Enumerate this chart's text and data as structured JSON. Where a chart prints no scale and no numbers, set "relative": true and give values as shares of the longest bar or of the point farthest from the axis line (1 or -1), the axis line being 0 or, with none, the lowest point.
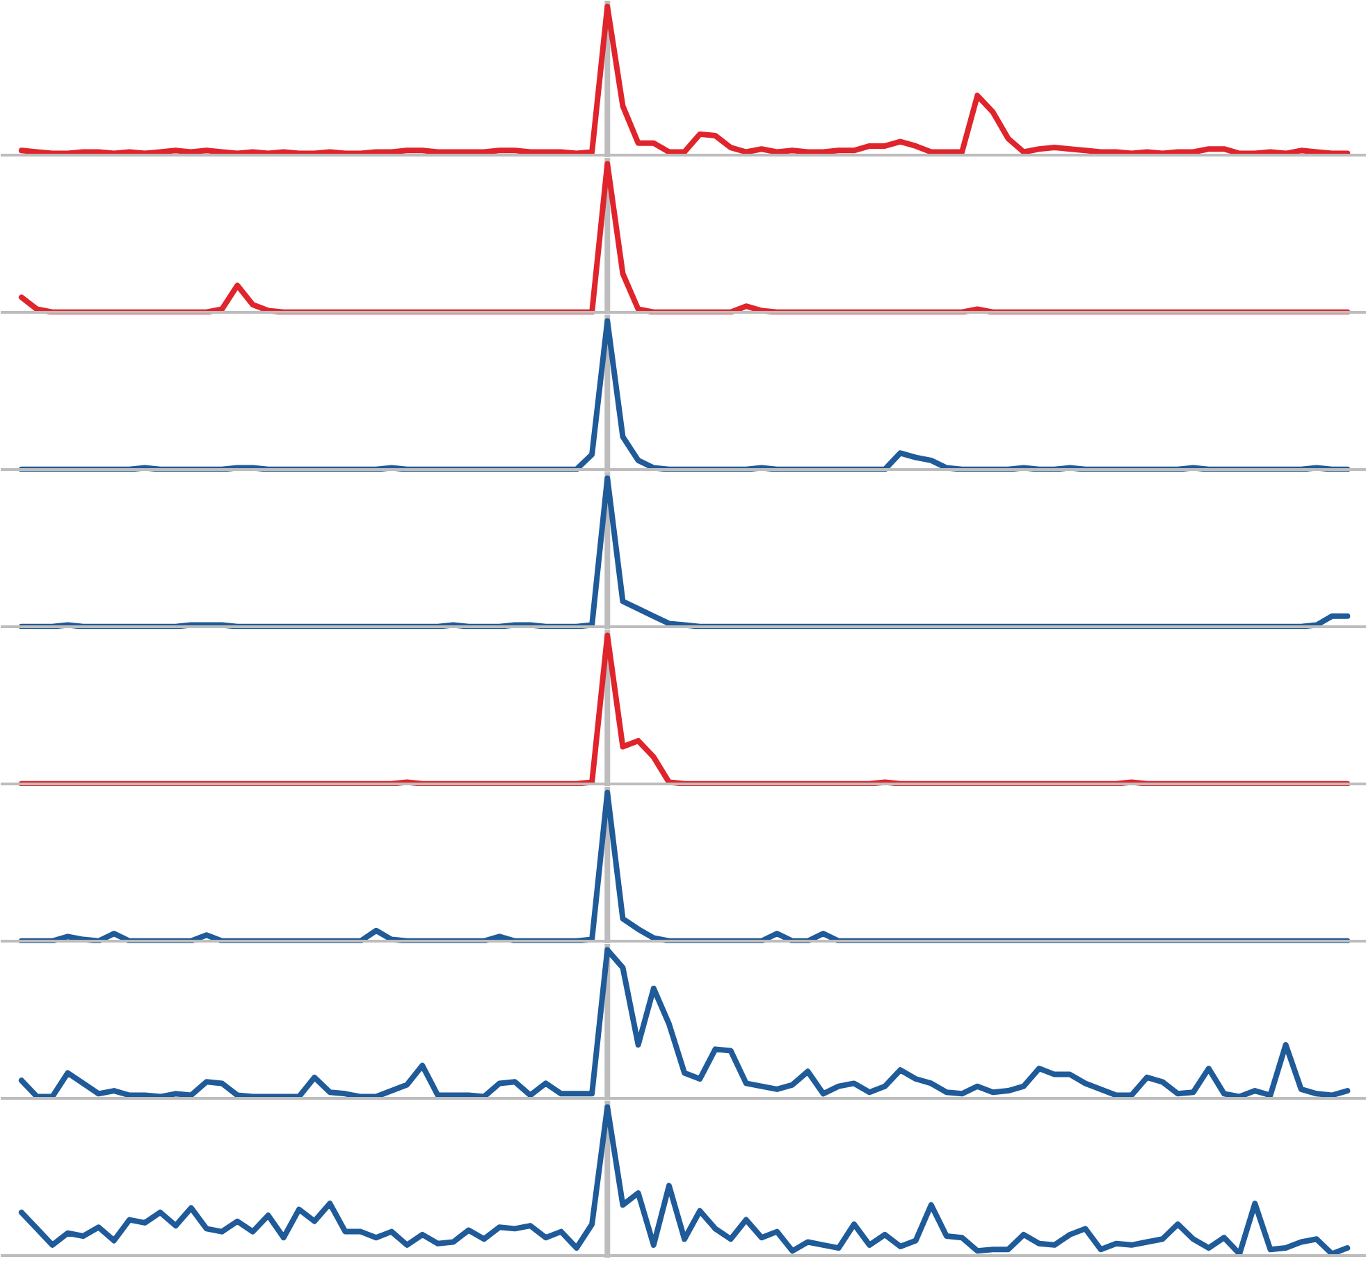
{
  "chart_data": [
    {
      "type": "line",
      "relative": true,
      "grid": false,
      "categories": [
        null,
        null,
        null,
        null,
        null,
        null,
        null,
        null,
        null,
        null,
        null,
        null,
        null,
        null,
        null,
        null,
        null,
        null,
        null,
        null,
        null,
        null,
        null,
        null,
        null,
        null,
        null,
        null,
        null,
        null,
        null,
        null,
        null,
        null,
        null,
        null,
        null,
        null,
        null,
        null,
        null,
        null,
        null,
        null,
        null,
        null,
        null,
        null,
        null,
        null,
        null,
        null,
        null,
        null,
        null,
        null,
        null,
        null,
        null,
        null,
        null,
        null,
        null,
        null,
        null,
        null,
        null,
        null,
        null,
        null,
        null,
        null,
        null,
        null,
        null,
        null,
        null,
        null,
        null,
        null,
        null,
        null,
        null,
        null,
        null,
        null,
        null
      ],
      "series": [
        {
          "color": "#e0242b",
          "values": [
            0.03,
            0.02,
            0.01,
            0.01,
            0.02,
            0.02,
            0.01,
            0.02,
            0.01,
            0.02,
            0.03,
            0.02,
            0.03,
            0.02,
            0.01,
            0.02,
            0.01,
            0.02,
            0.01,
            0.01,
            0.02,
            0.01,
            0.01,
            0.02,
            0.02,
            0.03,
            0.03,
            0.02,
            0.02,
            0.02,
            0.02,
            0.03,
            0.03,
            0.02,
            0.02,
            0.02,
            0.01,
            0.02,
            1,
            0.33,
            0.08,
            0.08,
            0.02,
            0.02,
            0.14,
            0.13,
            0.05,
            0.02,
            0.04,
            0.02,
            0.03,
            0.02,
            0.02,
            0.03,
            0.03,
            0.06,
            0.06,
            0.09,
            0.06,
            0.02,
            0.02,
            0.02,
            0.4,
            0.29,
            0.11,
            0.02,
            0.04,
            0.05,
            0.04,
            0.03,
            0.02,
            0.02,
            0.01,
            0.02,
            0.01,
            0.02,
            0.02,
            0.04,
            0.04,
            0.01,
            0.01,
            0.02,
            0.01,
            0.03,
            0.02,
            0.01,
            0.01
          ]
        }
      ]
    },
    {
      "type": "line",
      "relative": true,
      "grid": false,
      "categories": [
        null,
        null,
        null,
        null,
        null,
        null,
        null,
        null,
        null,
        null,
        null,
        null,
        null,
        null,
        null,
        null,
        null,
        null,
        null,
        null,
        null,
        null,
        null,
        null,
        null,
        null,
        null,
        null,
        null,
        null,
        null,
        null,
        null,
        null,
        null,
        null,
        null,
        null,
        null,
        null,
        null,
        null,
        null,
        null,
        null,
        null,
        null,
        null,
        null,
        null,
        null,
        null,
        null,
        null,
        null,
        null,
        null,
        null,
        null,
        null,
        null,
        null,
        null,
        null,
        null,
        null,
        null,
        null,
        null,
        null,
        null,
        null,
        null,
        null,
        null,
        null,
        null,
        null,
        null,
        null,
        null,
        null,
        null,
        null,
        null,
        null,
        null
      ],
      "series": [
        {
          "color": "#e0242b",
          "values": [
            0.1,
            0.02,
            0,
            0,
            0,
            0,
            0,
            0,
            0,
            0,
            0,
            0,
            0,
            0.02,
            0.18,
            0.05,
            0.01,
            0,
            0,
            0,
            0,
            0,
            0,
            0,
            0,
            0,
            0,
            0,
            0,
            0,
            0,
            0,
            0,
            0,
            0,
            0,
            0,
            0,
            1,
            0.26,
            0.02,
            0,
            0,
            0,
            0,
            0,
            0,
            0.04,
            0.01,
            0,
            0,
            0,
            0,
            0,
            0,
            0,
            0,
            0,
            0,
            0,
            0,
            0,
            0.02,
            0,
            0,
            0,
            0,
            0,
            0,
            0,
            0,
            0,
            0,
            0,
            0,
            0,
            0,
            0,
            0,
            0,
            0,
            0,
            0,
            0,
            0,
            0,
            0
          ]
        }
      ]
    },
    {
      "type": "line",
      "relative": true,
      "grid": false,
      "categories": [
        null,
        null,
        null,
        null,
        null,
        null,
        null,
        null,
        null,
        null,
        null,
        null,
        null,
        null,
        null,
        null,
        null,
        null,
        null,
        null,
        null,
        null,
        null,
        null,
        null,
        null,
        null,
        null,
        null,
        null,
        null,
        null,
        null,
        null,
        null,
        null,
        null,
        null,
        null,
        null,
        null,
        null,
        null,
        null,
        null,
        null,
        null,
        null,
        null,
        null,
        null,
        null,
        null,
        null,
        null,
        null,
        null,
        null,
        null,
        null,
        null,
        null,
        null,
        null,
        null,
        null,
        null,
        null,
        null,
        null,
        null,
        null,
        null,
        null,
        null,
        null,
        null,
        null,
        null,
        null,
        null,
        null,
        null,
        null,
        null,
        null,
        null
      ],
      "series": [
        {
          "color": "#1f5a99",
          "values": [
            0,
            0,
            0,
            0,
            0,
            0,
            0,
            0,
            0.01,
            0,
            0,
            0,
            0,
            0,
            0.01,
            0.01,
            0,
            0,
            0,
            0,
            0,
            0,
            0,
            0,
            0.01,
            0,
            0,
            0,
            0,
            0,
            0,
            0,
            0,
            0,
            0,
            0,
            0,
            0.1,
            1,
            0.22,
            0.06,
            0.01,
            0,
            0,
            0,
            0,
            0,
            0,
            0.01,
            0,
            0,
            0,
            0,
            0,
            0,
            0,
            0,
            0.11,
            0.08,
            0.06,
            0.01,
            0,
            0,
            0,
            0,
            0.01,
            0,
            0,
            0.01,
            0,
            0,
            0,
            0,
            0,
            0,
            0,
            0.01,
            0,
            0,
            0,
            0,
            0,
            0,
            0,
            0.01,
            0,
            0
          ]
        }
      ]
    },
    {
      "type": "line",
      "relative": true,
      "grid": false,
      "categories": [
        null,
        null,
        null,
        null,
        null,
        null,
        null,
        null,
        null,
        null,
        null,
        null,
        null,
        null,
        null,
        null,
        null,
        null,
        null,
        null,
        null,
        null,
        null,
        null,
        null,
        null,
        null,
        null,
        null,
        null,
        null,
        null,
        null,
        null,
        null,
        null,
        null,
        null,
        null,
        null,
        null,
        null,
        null,
        null,
        null,
        null,
        null,
        null,
        null,
        null,
        null,
        null,
        null,
        null,
        null,
        null,
        null,
        null,
        null,
        null,
        null,
        null,
        null,
        null,
        null,
        null,
        null,
        null,
        null,
        null,
        null,
        null,
        null,
        null,
        null,
        null,
        null,
        null,
        null,
        null,
        null,
        null,
        null,
        null,
        null,
        null,
        null
      ],
      "series": [
        {
          "color": "#1f5a99",
          "values": [
            0,
            0,
            0,
            0.01,
            0,
            0,
            0,
            0,
            0,
            0,
            0,
            0.01,
            0.01,
            0.01,
            0,
            0,
            0,
            0,
            0,
            0,
            0,
            0,
            0,
            0,
            0,
            0,
            0,
            0,
            0.01,
            0,
            0,
            0,
            0.01,
            0.01,
            0,
            0,
            0,
            0.01,
            1,
            0.17,
            0.12,
            0.07,
            0.02,
            0.01,
            0,
            0,
            0,
            0,
            0,
            0,
            0,
            0,
            0,
            0,
            0,
            0,
            0,
            0,
            0,
            0,
            0,
            0,
            0,
            0,
            0,
            0,
            0,
            0,
            0,
            0,
            0,
            0,
            0,
            0,
            0,
            0,
            0,
            0,
            0,
            0,
            0,
            0,
            0,
            0,
            0.01,
            0.07,
            0.07
          ]
        }
      ]
    },
    {
      "type": "line",
      "relative": true,
      "grid": false,
      "categories": [
        null,
        null,
        null,
        null,
        null,
        null,
        null,
        null,
        null,
        null,
        null,
        null,
        null,
        null,
        null,
        null,
        null,
        null,
        null,
        null,
        null,
        null,
        null,
        null,
        null,
        null,
        null,
        null,
        null,
        null,
        null,
        null,
        null,
        null,
        null,
        null,
        null,
        null,
        null,
        null,
        null,
        null,
        null,
        null,
        null,
        null,
        null,
        null,
        null,
        null,
        null,
        null,
        null,
        null,
        null,
        null,
        null,
        null,
        null,
        null,
        null,
        null,
        null,
        null,
        null,
        null,
        null,
        null,
        null,
        null,
        null,
        null,
        null,
        null,
        null,
        null,
        null,
        null,
        null,
        null,
        null,
        null,
        null,
        null,
        null,
        null,
        null
      ],
      "series": [
        {
          "color": "#e0242b",
          "values": [
            0,
            0,
            0,
            0,
            0,
            0,
            0,
            0,
            0,
            0,
            0,
            0,
            0,
            0,
            0,
            0,
            0,
            0,
            0,
            0,
            0,
            0,
            0,
            0,
            0,
            0.01,
            0,
            0,
            0,
            0,
            0,
            0,
            0,
            0,
            0,
            0,
            0,
            0.01,
            1,
            0.25,
            0.29,
            0.18,
            0.01,
            0,
            0,
            0,
            0,
            0,
            0,
            0,
            0,
            0,
            0,
            0,
            0,
            0,
            0.01,
            0,
            0,
            0,
            0,
            0,
            0,
            0,
            0,
            0,
            0,
            0,
            0,
            0,
            0,
            0,
            0.01,
            0,
            0,
            0,
            0,
            0,
            0,
            0,
            0,
            0,
            0,
            0,
            0,
            0,
            0
          ]
        }
      ]
    },
    {
      "type": "line",
      "relative": true,
      "grid": false,
      "categories": [
        null,
        null,
        null,
        null,
        null,
        null,
        null,
        null,
        null,
        null,
        null,
        null,
        null,
        null,
        null,
        null,
        null,
        null,
        null,
        null,
        null,
        null,
        null,
        null,
        null,
        null,
        null,
        null,
        null,
        null,
        null,
        null,
        null,
        null,
        null,
        null,
        null,
        null,
        null,
        null,
        null,
        null,
        null,
        null,
        null,
        null,
        null,
        null,
        null,
        null,
        null,
        null,
        null,
        null,
        null,
        null,
        null,
        null,
        null,
        null,
        null,
        null,
        null,
        null,
        null,
        null,
        null,
        null,
        null,
        null,
        null,
        null,
        null,
        null,
        null,
        null,
        null,
        null,
        null,
        null,
        null,
        null,
        null,
        null,
        null,
        null,
        null
      ],
      "series": [
        {
          "color": "#1f5a99",
          "values": [
            0,
            0,
            0,
            0.03,
            0.01,
            0,
            0.05,
            0,
            0,
            0,
            0,
            0,
            0.04,
            0,
            0,
            0,
            0,
            0,
            0,
            0,
            0,
            0,
            0,
            0.07,
            0.01,
            0,
            0,
            0,
            0,
            0,
            0,
            0.03,
            0,
            0,
            0,
            0,
            0,
            0.01,
            1,
            0.15,
            0.08,
            0.02,
            0,
            0,
            0,
            0,
            0,
            0,
            0,
            0.05,
            0,
            0,
            0.05,
            0,
            0,
            0,
            0,
            0,
            0,
            0,
            0,
            0,
            0,
            0,
            0,
            0,
            0,
            0,
            0,
            0,
            0,
            0,
            0,
            0,
            0,
            0,
            0,
            0,
            0,
            0,
            0,
            0,
            0,
            0,
            0,
            0,
            0
          ]
        }
      ]
    },
    {
      "type": "line",
      "relative": true,
      "grid": false,
      "categories": [
        null,
        null,
        null,
        null,
        null,
        null,
        null,
        null,
        null,
        null,
        null,
        null,
        null,
        null,
        null,
        null,
        null,
        null,
        null,
        null,
        null,
        null,
        null,
        null,
        null,
        null,
        null,
        null,
        null,
        null,
        null,
        null,
        null,
        null,
        null,
        null,
        null,
        null,
        null,
        null,
        null,
        null,
        null,
        null,
        null,
        null,
        null,
        null,
        null,
        null,
        null,
        null,
        null,
        null,
        null,
        null,
        null,
        null,
        null,
        null,
        null,
        null,
        null,
        null,
        null,
        null,
        null,
        null,
        null,
        null,
        null,
        null,
        null,
        null,
        null,
        null,
        null,
        null,
        null,
        null,
        null,
        null,
        null,
        null,
        null,
        null,
        null
      ],
      "series": [
        {
          "color": "#1f5a99",
          "values": [
            0.12,
            0.01,
            0.01,
            0.17,
            0.1,
            0.03,
            0.05,
            0.02,
            0.02,
            0.01,
            0.03,
            0.02,
            0.11,
            0.1,
            0.02,
            0.01,
            0.01,
            0.01,
            0.01,
            0.14,
            0.04,
            0.03,
            0.01,
            0.01,
            0.05,
            0.09,
            0.22,
            0.02,
            0.02,
            0.02,
            0.01,
            0.1,
            0.11,
            0.02,
            0.1,
            0.03,
            0.03,
            0.03,
            1,
            0.88,
            0.36,
            0.74,
            0.5,
            0.17,
            0.13,
            0.33,
            0.32,
            0.1,
            0.08,
            0.06,
            0.09,
            0.18,
            0.03,
            0.08,
            0.1,
            0.04,
            0.08,
            0.19,
            0.13,
            0.1,
            0.04,
            0.03,
            0.08,
            0.04,
            0.05,
            0.08,
            0.2,
            0.16,
            0.16,
            0.1,
            0.06,
            0.02,
            0.02,
            0.14,
            0.11,
            0.03,
            0.04,
            0.2,
            0.03,
            0.01,
            0.05,
            0.02,
            0.36,
            0.06,
            0.03,
            0.02,
            0.05
          ]
        }
      ]
    },
    {
      "type": "line",
      "relative": true,
      "grid": false,
      "categories": [
        null,
        null,
        null,
        null,
        null,
        null,
        null,
        null,
        null,
        null,
        null,
        null,
        null,
        null,
        null,
        null,
        null,
        null,
        null,
        null,
        null,
        null,
        null,
        null,
        null,
        null,
        null,
        null,
        null,
        null,
        null,
        null,
        null,
        null,
        null,
        null,
        null,
        null,
        null,
        null,
        null,
        null,
        null,
        null,
        null,
        null,
        null,
        null,
        null,
        null,
        null,
        null,
        null,
        null,
        null,
        null,
        null,
        null,
        null,
        null,
        null,
        null,
        null,
        null,
        null,
        null,
        null,
        null,
        null,
        null,
        null,
        null,
        null,
        null,
        null,
        null,
        null,
        null,
        null,
        null,
        null,
        null,
        null,
        null,
        null,
        null,
        null
      ],
      "series": [
        {
          "color": "#1f5a99",
          "values": [
            0.29,
            0.18,
            0.07,
            0.15,
            0.13,
            0.19,
            0.1,
            0.24,
            0.22,
            0.29,
            0.2,
            0.32,
            0.18,
            0.16,
            0.23,
            0.16,
            0.27,
            0.12,
            0.31,
            0.23,
            0.35,
            0.16,
            0.16,
            0.12,
            0.16,
            0.07,
            0.14,
            0.08,
            0.09,
            0.17,
            0.11,
            0.19,
            0.18,
            0.2,
            0.12,
            0.16,
            0.05,
            0.21,
            1,
            0.34,
            0.42,
            0.07,
            0.47,
            0.11,
            0.3,
            0.18,
            0.11,
            0.24,
            0.12,
            0.16,
            0.03,
            0.09,
            0.07,
            0.05,
            0.21,
            0.07,
            0.14,
            0.06,
            0.1,
            0.34,
            0.13,
            0.12,
            0.03,
            0.04,
            0.04,
            0.14,
            0.08,
            0.07,
            0.14,
            0.18,
            0.04,
            0.08,
            0.07,
            0.09,
            0.11,
            0.21,
            0.11,
            0.05,
            0.12,
            0.01,
            0.35,
            0.04,
            0.05,
            0.09,
            0.11,
            0.01,
            0.05
          ]
        }
      ]
    }
  ]
}
